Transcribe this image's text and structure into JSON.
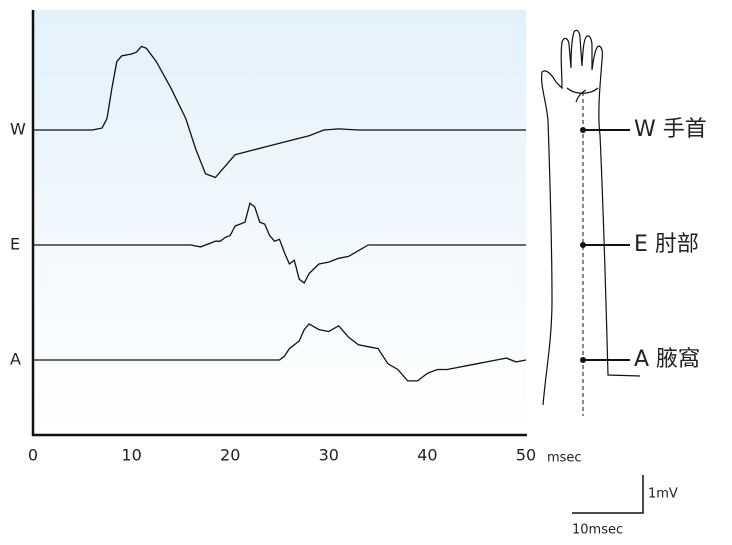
{
  "chart_data": {
    "type": "line",
    "xlim": [
      0,
      50
    ],
    "xticks": [
      0,
      10,
      20,
      30,
      40,
      50
    ],
    "x_unit": "msec",
    "color": "#111111",
    "series": [
      {
        "name": "W",
        "x": [
          0,
          6,
          7,
          7.5,
          8,
          8.5,
          9,
          10,
          10.5,
          11,
          11.5,
          12.5,
          14,
          15.5,
          16.5,
          17.5,
          18.5,
          19.5,
          20.5,
          22,
          25,
          28,
          29.5,
          31,
          33,
          50
        ],
        "values": [
          0,
          0,
          0.05,
          0.3,
          1.1,
          1.8,
          1.95,
          2.0,
          2.05,
          2.2,
          2.15,
          1.8,
          1.1,
          0.3,
          -0.5,
          -1.15,
          -1.25,
          -0.95,
          -0.65,
          -0.55,
          -0.35,
          -0.15,
          0,
          0.03,
          0,
          0
        ]
      },
      {
        "name": "E",
        "x": [
          0,
          16,
          17,
          18,
          18.5,
          19,
          19.5,
          20,
          20.5,
          21,
          21.5,
          22,
          22.5,
          23,
          23.5,
          24,
          24.5,
          25,
          25.5,
          26,
          26.5,
          27,
          27.5,
          28,
          29,
          30,
          31,
          32,
          33,
          34,
          50
        ],
        "values": [
          0,
          0,
          -0.05,
          0.05,
          0.1,
          0.1,
          0.2,
          0.25,
          0.5,
          0.55,
          0.6,
          1.1,
          1.0,
          0.6,
          0.55,
          0.25,
          0.1,
          0.15,
          -0.2,
          -0.5,
          -0.4,
          -0.9,
          -1.0,
          -0.75,
          -0.5,
          -0.45,
          -0.35,
          -0.3,
          -0.15,
          0,
          0
        ]
      },
      {
        "name": "A",
        "x": [
          0,
          25,
          25.5,
          26,
          27,
          27.5,
          28,
          29,
          30,
          31,
          32,
          33,
          34,
          35,
          35.5,
          36,
          37,
          38,
          39,
          40,
          41,
          42,
          43,
          44,
          45,
          46,
          47,
          48,
          49,
          50
        ],
        "values": [
          0,
          0,
          0.1,
          0.3,
          0.5,
          0.8,
          0.95,
          0.8,
          0.75,
          0.9,
          0.6,
          0.4,
          0.35,
          0.3,
          0.1,
          -0.1,
          -0.25,
          -0.55,
          -0.55,
          -0.35,
          -0.25,
          -0.25,
          -0.2,
          -0.15,
          -0.1,
          -0.05,
          0,
          0.05,
          -0.05,
          0
        ]
      }
    ],
    "scale_bar": {
      "y_label": "1mV",
      "x_label": "10msec"
    },
    "sites": [
      "W 手首",
      "E 肘部",
      "A 腋窩"
    ]
  }
}
